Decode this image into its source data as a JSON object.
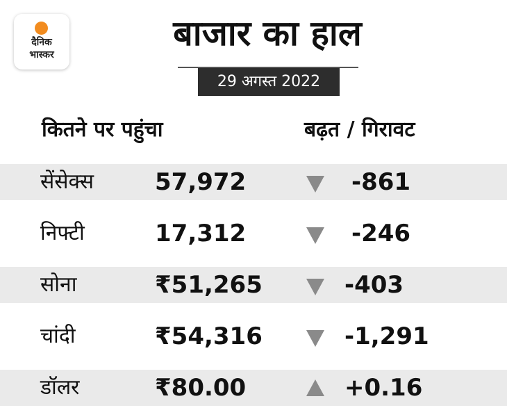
{
  "logo": {
    "line1": "दैनिक",
    "line2": "भास्कर",
    "accent": "#f28c1f"
  },
  "title": "बाजार का हाल",
  "date": "29 अगस्त 2022",
  "headers": {
    "left": "कितने पर पहुंचा",
    "right": "बढ़त / गिरावट"
  },
  "rows": [
    {
      "name": "सेंसेक्स",
      "value": "57,972",
      "direction": "down",
      "change": "-861"
    },
    {
      "name": "निफ्टी",
      "value": "17,312",
      "direction": "down",
      "change": "-246"
    },
    {
      "name": "सोना",
      "value": "₹51,265",
      "direction": "down",
      "change": "-403"
    },
    {
      "name": "चांदी",
      "value": "₹54,316",
      "direction": "down",
      "change": "-1,291"
    },
    {
      "name": "डॉलर",
      "value": "₹80.00",
      "direction": "up",
      "change": "+0.16"
    }
  ],
  "colors": {
    "row_shade": "#eaeaea",
    "date_bg": "#2d2d2d",
    "arrow": "#8a8a8a"
  }
}
